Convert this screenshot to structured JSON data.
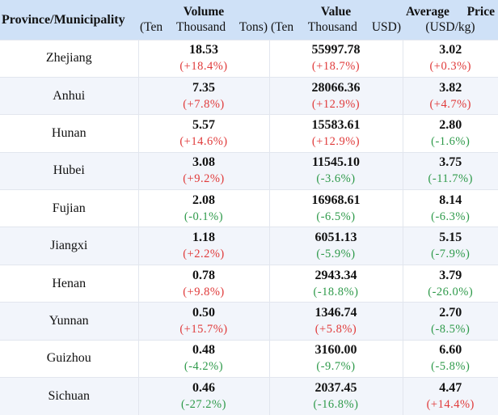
{
  "colors": {
    "header_bg": "#cfe1f7",
    "increase": "#e03a3a",
    "decrease": "#2e9a4a"
  },
  "header": {
    "province": "Province/Municipality",
    "volume_title": "Volume",
    "volume_unit": "(Ten Thousand Tons)",
    "value_title": "Value",
    "value_unit": "(Ten Thousand USD)",
    "price_title": "Average Price",
    "price_unit": "(USD/kg)"
  },
  "rows": [
    {
      "province": "Zhejiang",
      "volume": "18.53",
      "volume_change": "(+18.4%)",
      "volume_dir": "up",
      "value": "55997.78",
      "value_change": "(+18.7%)",
      "value_dir": "up",
      "price": "3.02",
      "price_change": "(+0.3%)",
      "price_dir": "up"
    },
    {
      "province": "Anhui",
      "volume": "7.35",
      "volume_change": "(+7.8%)",
      "volume_dir": "up",
      "value": "28066.36",
      "value_change": "(+12.9%)",
      "value_dir": "up",
      "price": "3.82",
      "price_change": "(+4.7%)",
      "price_dir": "up"
    },
    {
      "province": "Hunan",
      "volume": "5.57",
      "volume_change": "(+14.6%)",
      "volume_dir": "up",
      "value": "15583.61",
      "value_change": "(+12.9%)",
      "value_dir": "up",
      "price": "2.80",
      "price_change": "(-1.6%)",
      "price_dir": "down"
    },
    {
      "province": "Hubei",
      "volume": "3.08",
      "volume_change": "(+9.2%)",
      "volume_dir": "up",
      "value": "11545.10",
      "value_change": "(-3.6%)",
      "value_dir": "down",
      "price": "3.75",
      "price_change": "(-11.7%)",
      "price_dir": "down"
    },
    {
      "province": "Fujian",
      "volume": "2.08",
      "volume_change": "(-0.1%)",
      "volume_dir": "down",
      "value": "16968.61",
      "value_change": "(-6.5%)",
      "value_dir": "down",
      "price": "8.14",
      "price_change": "(-6.3%)",
      "price_dir": "down"
    },
    {
      "province": "Jiangxi",
      "volume": "1.18",
      "volume_change": "(+2.2%)",
      "volume_dir": "up",
      "value": "6051.13",
      "value_change": "(-5.9%)",
      "value_dir": "down",
      "price": "5.15",
      "price_change": "(-7.9%)",
      "price_dir": "down"
    },
    {
      "province": "Henan",
      "volume": "0.78",
      "volume_change": "(+9.8%)",
      "volume_dir": "up",
      "value": "2943.34",
      "value_change": "(-18.8%)",
      "value_dir": "down",
      "price": "3.79",
      "price_change": "(-26.0%)",
      "price_dir": "down"
    },
    {
      "province": "Yunnan",
      "volume": "0.50",
      "volume_change": "(+15.7%)",
      "volume_dir": "up",
      "value": "1346.74",
      "value_change": "(+5.8%)",
      "value_dir": "up",
      "price": "2.70",
      "price_change": "(-8.5%)",
      "price_dir": "down"
    },
    {
      "province": "Guizhou",
      "volume": "0.48",
      "volume_change": "(-4.2%)",
      "volume_dir": "down",
      "value": "3160.00",
      "value_change": "(-9.7%)",
      "value_dir": "down",
      "price": "6.60",
      "price_change": "(-5.8%)",
      "price_dir": "down"
    },
    {
      "province": "Sichuan",
      "volume": "0.46",
      "volume_change": "(-27.2%)",
      "volume_dir": "down",
      "value": "2037.45",
      "value_change": "(-16.8%)",
      "value_dir": "down",
      "price": "4.47",
      "price_change": "(+14.4%)",
      "price_dir": "up"
    }
  ]
}
